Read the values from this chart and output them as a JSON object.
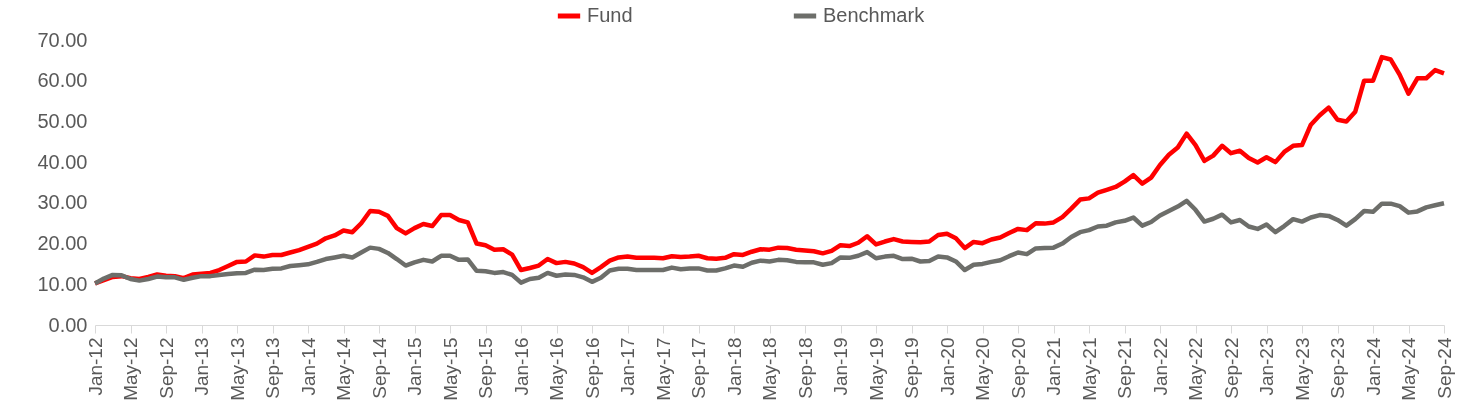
{
  "chart_data": {
    "type": "line",
    "categories": [
      "Jan-12",
      null,
      null,
      null,
      "May-12",
      null,
      null,
      null,
      "Sep-12",
      null,
      null,
      null,
      "Jan-13",
      null,
      null,
      null,
      "May-13",
      null,
      null,
      null,
      "Sep-13",
      null,
      null,
      null,
      "Jan-14",
      null,
      null,
      null,
      "May-14",
      null,
      null,
      null,
      "Sep-14",
      null,
      null,
      null,
      "Jan-15",
      null,
      null,
      null,
      "May-15",
      null,
      null,
      null,
      "Sep-15",
      null,
      null,
      null,
      "Jan-16",
      null,
      null,
      null,
      "May-16",
      null,
      null,
      null,
      "Sep-16",
      null,
      null,
      null,
      "Jan-17",
      null,
      null,
      null,
      "May-17",
      null,
      null,
      null,
      "Sep-17",
      null,
      null,
      null,
      "Jan-18",
      null,
      null,
      null,
      "May-18",
      null,
      null,
      null,
      "Sep-18",
      null,
      null,
      null,
      "Jan-19",
      null,
      null,
      null,
      "May-19",
      null,
      null,
      null,
      "Sep-19",
      null,
      null,
      null,
      "Jan-20",
      null,
      null,
      null,
      "May-20",
      null,
      null,
      null,
      "Sep-20",
      null,
      null,
      null,
      "Jan-21",
      null,
      null,
      null,
      "May-21",
      null,
      null,
      null,
      "Sep-21",
      null,
      null,
      null,
      "Jan-22",
      null,
      null,
      null,
      "May-22",
      null,
      null,
      null,
      "Sep-22",
      null,
      null,
      null,
      "Jan-23",
      null,
      null,
      null,
      "May-23",
      null,
      null,
      null,
      "Sep-23",
      null,
      null,
      null,
      "Jan-24",
      null,
      null,
      null,
      "May-24",
      null,
      null,
      null,
      "Sep-24"
    ],
    "series": [
      {
        "name": "Fund",
        "color": "#ff0000",
        "values": [
          10.2,
          11,
          11.8,
          12,
          11.5,
          11.3,
          11.8,
          12.4,
          12.1,
          12,
          11.5,
          12.4,
          12.6,
          12.8,
          13.5,
          14.5,
          15.5,
          15.6,
          17.1,
          16.8,
          17.2,
          17.2,
          17.8,
          18.4,
          19.2,
          20,
          21.3,
          22,
          23.2,
          22.8,
          25,
          28,
          27.8,
          26.8,
          23.8,
          22.5,
          23.8,
          24.8,
          24.3,
          27,
          27,
          25.8,
          25.2,
          20,
          19.6,
          18.5,
          18.6,
          17.3,
          13.5,
          14,
          14.6,
          16.2,
          15.2,
          15.5,
          15.1,
          14.2,
          12.8,
          14.2,
          15.8,
          16.6,
          16.8,
          16.5,
          16.5,
          16.5,
          16.4,
          16.9,
          16.7,
          16.8,
          17,
          16.4,
          16.3,
          16.5,
          17.4,
          17.2,
          18,
          18.6,
          18.5,
          19,
          18.9,
          18.5,
          18.3,
          18.1,
          17.6,
          18.2,
          19.6,
          19.4,
          20.2,
          21.8,
          19.8,
          20.5,
          21.1,
          20.5,
          20.4,
          20.3,
          20.5,
          22.1,
          22.4,
          21.3,
          18.9,
          20.4,
          20.1,
          21,
          21.5,
          22.6,
          23.6,
          23.3,
          25,
          24.9,
          25.2,
          26.5,
          28.6,
          30.8,
          31.1,
          32.5,
          33.2,
          33.9,
          35.2,
          36.8,
          34.7,
          36.2,
          39.3,
          41.8,
          43.6,
          47,
          44.2,
          40.3,
          41.6,
          44,
          42.2,
          42.8,
          41,
          39.9,
          41.2,
          40,
          42.5,
          44,
          44.2,
          49.2,
          51.5,
          53.4,
          50.4,
          50,
          52.4,
          60,
          60,
          65.8,
          65.2,
          61.5,
          56.8,
          60.6,
          60.6,
          62.6,
          61.8
        ]
      },
      {
        "name": "Benchmark",
        "color": "#6d6e6a",
        "values": [
          10.2,
          11.4,
          12.3,
          12.2,
          11.3,
          10.9,
          11.3,
          11.9,
          11.7,
          11.7,
          11.1,
          11.6,
          12,
          12,
          12.3,
          12.5,
          12.7,
          12.8,
          13.6,
          13.5,
          13.8,
          13.9,
          14.5,
          14.7,
          14.9,
          15.5,
          16.2,
          16.6,
          17,
          16.6,
          17.8,
          19,
          18.7,
          17.7,
          16.2,
          14.6,
          15.4,
          16,
          15.6,
          17,
          17,
          16,
          16.1,
          13.3,
          13.2,
          12.8,
          13,
          12.3,
          10.4,
          11.3,
          11.6,
          12.8,
          12.1,
          12.4,
          12.3,
          11.7,
          10.6,
          11.6,
          13.4,
          13.8,
          13.8,
          13.5,
          13.5,
          13.5,
          13.5,
          14.1,
          13.7,
          13.9,
          13.9,
          13.4,
          13.4,
          13.9,
          14.6,
          14.3,
          15.3,
          15.8,
          15.6,
          16,
          15.9,
          15.5,
          15.4,
          15.4,
          14.8,
          15.2,
          16.6,
          16.5,
          17,
          17.9,
          16.4,
          16.8,
          17,
          16.2,
          16.3,
          15.6,
          15.7,
          16.8,
          16.6,
          15.6,
          13.5,
          14.8,
          15,
          15.5,
          15.9,
          16.9,
          17.8,
          17.4,
          18.8,
          18.9,
          19,
          20,
          21.6,
          22.8,
          23.3,
          24.2,
          24.4,
          25.2,
          25.6,
          26.4,
          24.4,
          25.3,
          26.9,
          28,
          29.1,
          30.5,
          28.3,
          25.4,
          26.1,
          27.1,
          25.2,
          25.8,
          24.2,
          23.6,
          24.7,
          22.8,
          24.3,
          26,
          25.4,
          26.4,
          27,
          26.8,
          25.8,
          24.4,
          26,
          28,
          27.8,
          29.8,
          29.8,
          29.2,
          27.6,
          27.9,
          28.9,
          29.4,
          29.9
        ]
      }
    ],
    "ylim": [
      0,
      70
    ],
    "yticks": [
      {
        "value": 0,
        "label": "0.00"
      },
      {
        "value": 10,
        "label": "10.00"
      },
      {
        "value": 20,
        "label": "20.00"
      },
      {
        "value": 30,
        "label": "30.00"
      },
      {
        "value": 40,
        "label": "40.00"
      },
      {
        "value": 50,
        "label": "50.00"
      },
      {
        "value": 60,
        "label": "60.00"
      },
      {
        "value": 70,
        "label": "70.00"
      }
    ],
    "grid": false,
    "legend": "top",
    "marker": "none",
    "line_style": "solid"
  }
}
